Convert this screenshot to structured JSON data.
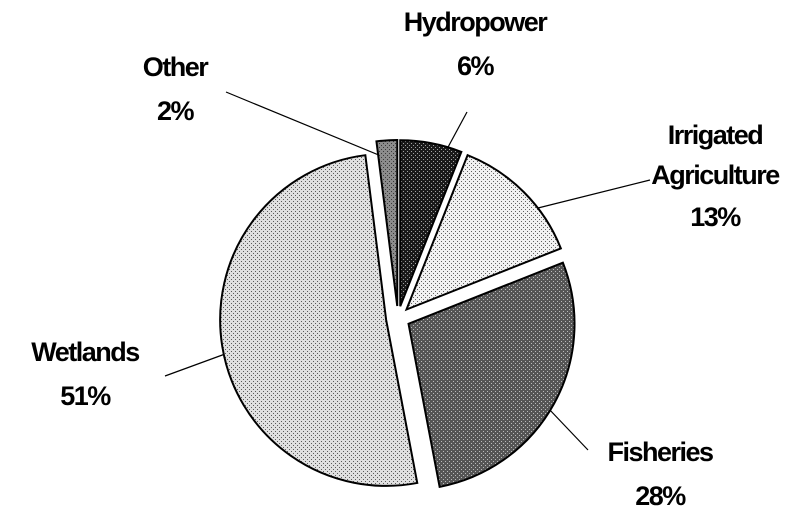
{
  "chart_data": {
    "type": "pie",
    "categories": [
      "Hydropower",
      "Irrigated Agriculture",
      "Fisheries",
      "Wetlands",
      "Other"
    ],
    "values": [
      6,
      13,
      28,
      51,
      2
    ],
    "value_labels": [
      "6%",
      "13%",
      "28%",
      "51%",
      "2%"
    ],
    "colors": [
      "#1a1a1a",
      "#f2f2f2",
      "#555555",
      "#e0e0e0",
      "#8c8c8c"
    ]
  }
}
